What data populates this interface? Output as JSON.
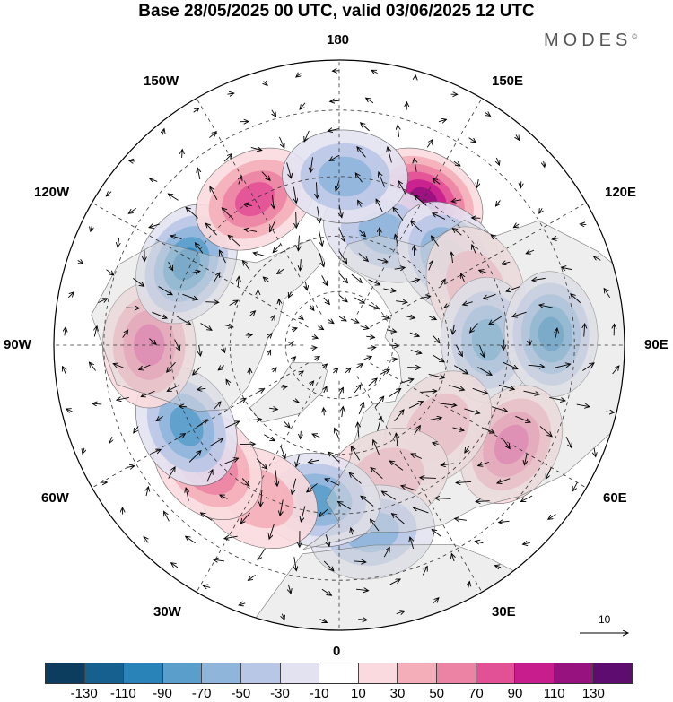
{
  "title": "Base 28/05/2025 00 UTC, valid 03/06/2025 12 UTC",
  "brand": "MODES",
  "brand_mark": "©",
  "longitude_labels": {
    "lon_180": "180",
    "lon_150E": "150E",
    "lon_120E": "120E",
    "lon_90E": "90E",
    "lon_60E": "60E",
    "lon_30E": "30E",
    "lon_0": "0",
    "lon_30W": "30W",
    "lon_60W": "60W",
    "lon_90W": "90W",
    "lon_120W": "120W",
    "lon_150W": "150W"
  },
  "vector_scale_label": "10",
  "colorbar": {
    "colors": [
      "#0d3d5e",
      "#15608f",
      "#2a83b8",
      "#5a9fcb",
      "#8fb5db",
      "#b9c7e6",
      "#e3e2f1",
      "#ffffff",
      "#fadade",
      "#f4aeb9",
      "#ec83a4",
      "#e25196",
      "#c71d8d",
      "#97117f",
      "#5e0c70"
    ],
    "tick_labels": [
      "-130",
      "-110",
      "-90",
      "-70",
      "-50",
      "-30",
      "-10",
      "10",
      "30",
      "50",
      "70",
      "90",
      "110",
      "130"
    ]
  },
  "map": {
    "projection": "north polar stereographic",
    "anomaly_blobs": [
      {
        "lon": 150,
        "lat": 45,
        "value": 110
      },
      {
        "lon": 158,
        "lat": 57,
        "value": -50
      },
      {
        "lon": 128,
        "lat": 52,
        "value": -70
      },
      {
        "lon": 113,
        "lat": 50,
        "value": 30
      },
      {
        "lon": 92,
        "lat": 50,
        "value": -70
      },
      {
        "lon": 93,
        "lat": 35,
        "value": -90
      },
      {
        "lon": 60,
        "lat": 38,
        "value": 70
      },
      {
        "lon": 50,
        "lat": 55,
        "value": 30
      },
      {
        "lon": 20,
        "lat": 52,
        "value": 30
      },
      {
        "lon": 10,
        "lat": 40,
        "value": -50
      },
      {
        "lon": -8,
        "lat": 48,
        "value": -70
      },
      {
        "lon": -28,
        "lat": 44,
        "value": 30
      },
      {
        "lon": -48,
        "lat": 43,
        "value": 70
      },
      {
        "lon": -62,
        "lat": 44,
        "value": -70
      },
      {
        "lon": -90,
        "lat": 40,
        "value": 70
      },
      {
        "lon": -118,
        "lat": 44,
        "value": -90
      },
      {
        "lon": -150,
        "lat": 45,
        "value": 70
      },
      {
        "lon": 178,
        "lat": 45,
        "value": -50
      }
    ]
  }
}
